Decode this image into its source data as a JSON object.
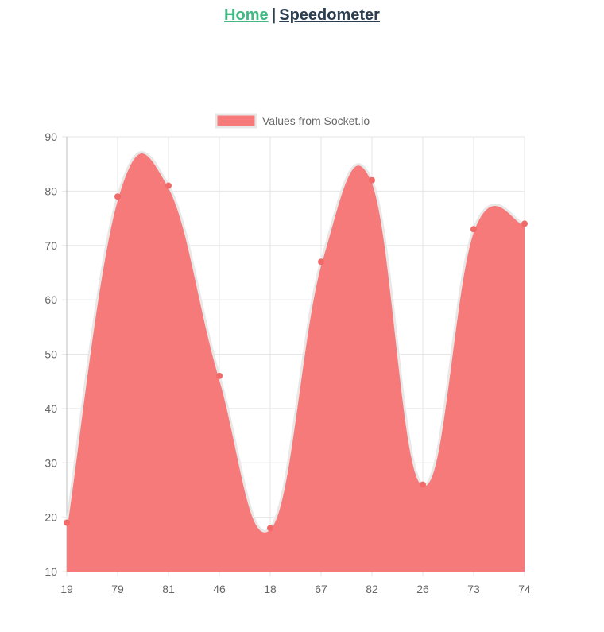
{
  "nav": {
    "home_label": "Home",
    "separator": "|",
    "speedometer_label": "Speedometer"
  },
  "colors": {
    "fill": "#f67a7a",
    "border": "#e8e8e8",
    "point": "#f06a6a",
    "grid": "#e6e6e6",
    "axis_text": "#666666",
    "nav_active": "#42b983",
    "nav_text": "#2c3e50"
  },
  "chart_data": {
    "type": "area",
    "categories": [
      "19",
      "79",
      "81",
      "46",
      "18",
      "67",
      "82",
      "26",
      "73",
      "74"
    ],
    "series": [
      {
        "name": "Values from Socket.io",
        "values": [
          19,
          79,
          81,
          46,
          18,
          67,
          82,
          26,
          73,
          74
        ]
      }
    ],
    "ylim": [
      10,
      90
    ],
    "yticks": [
      10,
      20,
      30,
      40,
      50,
      60,
      70,
      80,
      90
    ],
    "grid": true,
    "legend_position": "top",
    "curve": "smooth"
  }
}
